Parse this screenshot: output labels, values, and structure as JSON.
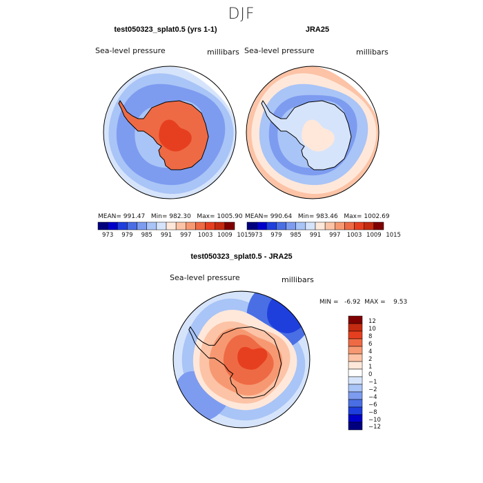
{
  "page": {
    "season_title": "DJF"
  },
  "colors": {
    "absolute_levels": [
      "#00007f",
      "#0000c8",
      "#1f3fdd",
      "#4a6fe4",
      "#7d9cf0",
      "#a9c4f6",
      "#d6e4fb",
      "#ffe8da",
      "#fcc3a6",
      "#f69972",
      "#ee6a44",
      "#e63f1f",
      "#c42a10",
      "#7f0000"
    ],
    "difference_levels": [
      "#00007f",
      "#0000c8",
      "#1f3fdd",
      "#4a6fe4",
      "#7d9cf0",
      "#a9c4f6",
      "#d6e4fb",
      "#ffffff",
      "#ffe8da",
      "#fcc3a6",
      "#f69972",
      "#ee6a44",
      "#e63f1f",
      "#c42a10",
      "#7f0000"
    ],
    "coastline": "#000000"
  },
  "chart_data": [
    {
      "type": "heatmap",
      "projection": "south-polar-stereographic",
      "title": "test050323_splat0.5 (yrs 1-1)",
      "variable_label": "Sea-level pressure",
      "units": "millibars",
      "stats": {
        "mean_label": "MEAN=",
        "mean": "991.47",
        "min_label": "Min=",
        "min": "982.30",
        "max_label": "Max=",
        "max": "1005.90"
      },
      "colorbar_ticks": [
        "973",
        "979",
        "985",
        "991",
        "997",
        "1003",
        "1009",
        "1015"
      ],
      "colorbar_levels": 14,
      "field": {
        "ring_levels": [
          6,
          5,
          4,
          4,
          5
        ],
        "interior_level": 10,
        "core_level": 11
      }
    },
    {
      "type": "heatmap",
      "projection": "south-polar-stereographic",
      "title": "JRA25",
      "variable_label": "Sea-level pressure",
      "units": "millibars",
      "stats": {
        "mean_label": "MEAN=",
        "mean": "990.64",
        "min_label": "Min=",
        "min": "983.46",
        "max_label": "Max=",
        "max": "1002.69"
      },
      "colorbar_ticks": [
        "973",
        "979",
        "985",
        "991",
        "997",
        "1003",
        "1009",
        "1015"
      ],
      "colorbar_levels": 14,
      "field": {
        "ring_levels": [
          8,
          7,
          5,
          4,
          5
        ],
        "interior_level": 6,
        "core_level": 7
      }
    },
    {
      "type": "heatmap",
      "projection": "south-polar-stereographic",
      "title": "test050323_splat0.5 - JRA25",
      "variable_label": "Sea-level pressure",
      "units": "millibars",
      "stats": {
        "min_label": "MIN =",
        "min": "-6.92",
        "max_label": "MAX =",
        "max": "9.53"
      },
      "colorbar_ticks": [
        "12",
        "10",
        "8",
        "6",
        "4",
        "2",
        "1",
        "0",
        "−1",
        "−2",
        "−4",
        "−6",
        "−8",
        "−10",
        "−12"
      ],
      "colorbar_levels": 15
    }
  ]
}
